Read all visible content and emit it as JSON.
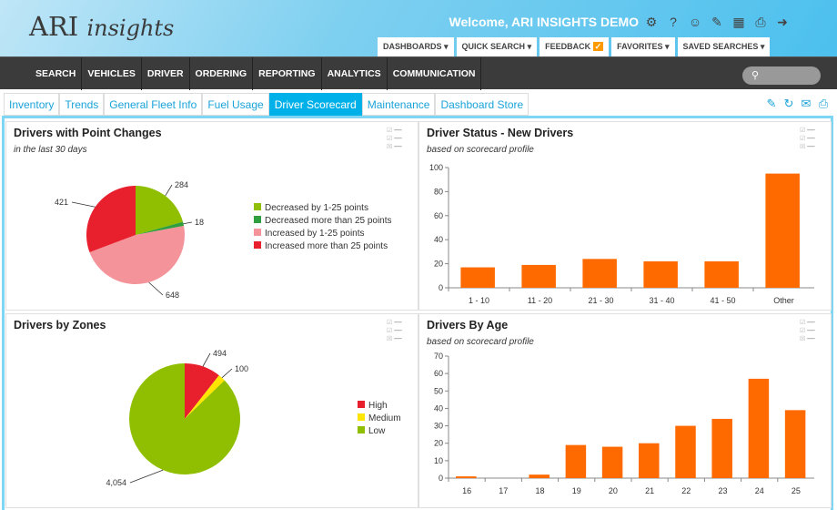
{
  "header": {
    "logo": "ARI insights",
    "welcome": "Welcome, ARI INSIGHTS DEMO",
    "icons": [
      "gear-icon",
      "help-icon",
      "support-icon",
      "announcement-icon",
      "calendar-icon",
      "print-icon",
      "logout-icon"
    ],
    "menus": [
      "DASHBOARDS",
      "QUICK SEARCH",
      "FEEDBACK",
      "FAVORITES",
      "SAVED SEARCHES"
    ]
  },
  "nav": {
    "items": [
      "SEARCH",
      "VEHICLES",
      "DRIVER",
      "ORDERING",
      "REPORTING",
      "ANALYTICS",
      "COMMUNICATION"
    ]
  },
  "tabs": {
    "items": [
      "Inventory",
      "Trends",
      "General Fleet Info",
      "Fuel Usage",
      "Driver Scorecard",
      "Maintenance",
      "Dashboard Store"
    ],
    "active": "Driver Scorecard",
    "icons": [
      "edit-icon",
      "refresh-icon",
      "comment-icon",
      "pdf-icon"
    ]
  },
  "colors": {
    "accent": "#00b0e8",
    "bar": "#ff6a00"
  },
  "chart_data": [
    {
      "type": "pie",
      "title": "Drivers with Point Changes",
      "subtitle": "in the last 30 days",
      "legend": "right",
      "categories": [
        "Decreased by 1-25 points",
        "Decreased more than 25 points",
        "Increased by 1-25 points",
        "Increased more than 25 points"
      ],
      "values": [
        284,
        18,
        648,
        421
      ],
      "labels": [
        "284",
        "18",
        "648",
        "421"
      ],
      "colors": [
        "#8fbf00",
        "#2e9e3e",
        "#f4939a",
        "#e8202e"
      ]
    },
    {
      "type": "bar",
      "title": "Driver Status - New Drivers",
      "subtitle": "based on scorecard profile",
      "categories": [
        "1 - 10",
        "11 - 20",
        "21 - 30",
        "31 - 40",
        "41 - 50",
        "Other"
      ],
      "values": [
        17,
        19,
        24,
        22,
        22,
        95
      ],
      "ylim": [
        0,
        100
      ],
      "yticks": [
        0,
        20,
        40,
        60,
        80,
        100
      ]
    },
    {
      "type": "pie",
      "title": "Drivers by Zones",
      "legend": "right",
      "categories": [
        "High",
        "Medium",
        "Low"
      ],
      "values": [
        494,
        100,
        4054
      ],
      "labels": [
        "494",
        "100",
        "4,054"
      ],
      "colors": [
        "#e8202e",
        "#ffe600",
        "#8fbf00"
      ]
    },
    {
      "type": "bar",
      "title": "Drivers By Age",
      "subtitle": "based on scorecard profile",
      "categories": [
        "16",
        "17",
        "18",
        "19",
        "20",
        "21",
        "22",
        "23",
        "24",
        "25"
      ],
      "values": [
        1,
        0,
        2,
        19,
        18,
        20,
        30,
        34,
        57,
        39
      ],
      "ylim": [
        0,
        70
      ],
      "yticks": [
        0,
        10,
        20,
        30,
        40,
        50,
        60,
        70
      ]
    }
  ]
}
